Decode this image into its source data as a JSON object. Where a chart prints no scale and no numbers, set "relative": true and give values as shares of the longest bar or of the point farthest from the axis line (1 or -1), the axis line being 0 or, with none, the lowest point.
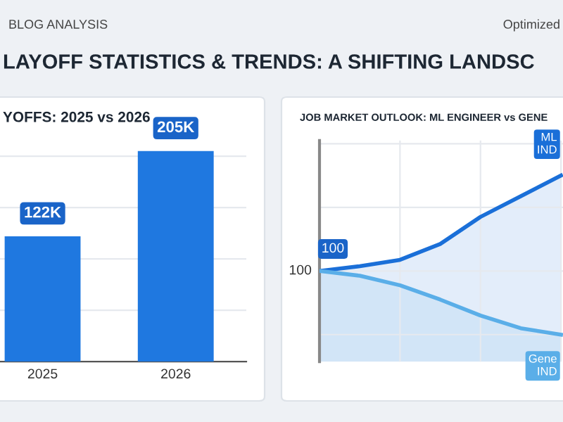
{
  "chart_data": [
    {
      "type": "bar",
      "title": "YOFFS: 2025 vs 2026",
      "categories": [
        "2025",
        "2026"
      ],
      "values": [
        122,
        205
      ],
      "value_labels": [
        "122K",
        "205K"
      ],
      "color": "#1f78e0",
      "yticks": [
        {
          "value": 50,
          "label": null
        },
        {
          "value": 100,
          "label": null
        },
        {
          "value": 150,
          "label": null
        },
        {
          "value": 200,
          "label": null
        }
      ],
      "grid": "y",
      "tick_labels": "x",
      "annotations": [
        "BLOG ANALYSIS",
        "Optimized",
        "LAYOFF STATISTICS & TRENDS: A SHIFTING LANDSC"
      ]
    },
    {
      "type": "area",
      "title": "JOB MARKET OUTLOOK: ML ENGINEER vs GENE",
      "relative": true,
      "categories": [
        null,
        null,
        null,
        null,
        null,
        null,
        null
      ],
      "grid": true,
      "tick_labels": false,
      "annotations": [
        "100",
        "100"
      ],
      "series": [
        {
          "name": "ML\nIND",
          "color": "#1a6fd8",
          "values": [
            0.4,
            0.43,
            0.47,
            0.57,
            0.74,
            0.87,
            1.0
          ]
        },
        {
          "name": "Gene\nIND",
          "color": "#5aaee8",
          "values": [
            0.4,
            0.37,
            0.31,
            0.22,
            0.12,
            0.04,
            0.0
          ]
        }
      ]
    }
  ]
}
